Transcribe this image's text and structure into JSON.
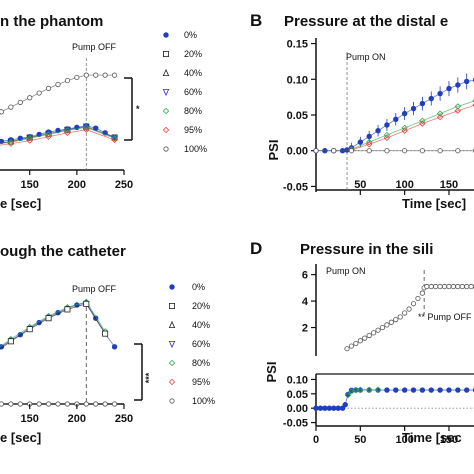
{
  "colors": {
    "c0": "#1f3fbf",
    "c20": "#222222",
    "c40": "#222222",
    "c60": "#3a30c8",
    "c80": "#2fa84a",
    "c95": "#e0403a",
    "c100": "#555555"
  },
  "chart_data": [
    {
      "id": "A",
      "type": "scatter",
      "panel_letter": "",
      "title": "n the phantom",
      "xlabel": "e [sec]",
      "ylabel": "",
      "x_ticks": [
        "150",
        "200",
        "250"
      ],
      "y_ticks": [],
      "annotations": [
        "Pump OFF"
      ],
      "significance": "*",
      "legend": [
        "0%",
        "20%",
        "40%",
        "60%",
        "80%",
        "95%",
        "100%"
      ],
      "xlim": [
        110,
        250
      ],
      "ylim": [
        0,
        1
      ],
      "series": [
        {
          "key": "c100",
          "marker": "circle-open",
          "x": [
            110,
            120,
            130,
            140,
            150,
            160,
            170,
            180,
            190,
            200,
            210,
            220,
            230,
            240
          ],
          "y": [
            0.44,
            0.49,
            0.55,
            0.61,
            0.67,
            0.73,
            0.79,
            0.84,
            0.89,
            0.93,
            0.96,
            0.96,
            0.96,
            0.96
          ]
        },
        {
          "key": "c20",
          "marker": "square-open",
          "x": [
            110,
            130,
            150,
            170,
            190,
            210,
            240
          ],
          "y": [
            0.07,
            0.11,
            0.16,
            0.21,
            0.26,
            0.3,
            0.16
          ]
        },
        {
          "key": "c0",
          "marker": "dot",
          "x": [
            110,
            120,
            130,
            140,
            150,
            160,
            170,
            180,
            190,
            200,
            210,
            220,
            230,
            240
          ],
          "y": [
            0.09,
            0.11,
            0.13,
            0.15,
            0.17,
            0.2,
            0.23,
            0.25,
            0.27,
            0.29,
            0.31,
            0.28,
            0.22,
            0.16
          ]
        },
        {
          "key": "c80",
          "marker": "diamond-open",
          "x": [
            110,
            130,
            150,
            170,
            190,
            210,
            240
          ],
          "y": [
            0.07,
            0.1,
            0.15,
            0.2,
            0.25,
            0.29,
            0.15
          ]
        },
        {
          "key": "c95",
          "marker": "diamond-open",
          "x": [
            110,
            130,
            150,
            170,
            190,
            210,
            240
          ],
          "y": [
            0.05,
            0.08,
            0.12,
            0.17,
            0.22,
            0.26,
            0.13
          ]
        }
      ]
    },
    {
      "id": "B",
      "type": "scatter",
      "panel_letter": "B",
      "title": "Pressure at the distal e",
      "xlabel": "Time [sec]",
      "ylabel": "PSI",
      "x_ticks": [
        "50",
        "100",
        "150"
      ],
      "y_ticks": [
        "0.15",
        "0.10",
        "0.05",
        "0.00",
        "-0.05"
      ],
      "annotations": [
        "Pump ON"
      ],
      "xlim": [
        0,
        185
      ],
      "ylim": [
        -0.055,
        0.155
      ],
      "series": [
        {
          "key": "c0",
          "marker": "dot",
          "x": [
            0,
            10,
            20,
            30,
            35,
            40,
            50,
            60,
            70,
            80,
            90,
            100,
            110,
            120,
            130,
            140,
            150,
            160,
            170,
            180,
            185
          ],
          "y": [
            0,
            0,
            0,
            0,
            0.001,
            0.004,
            0.012,
            0.02,
            0.028,
            0.036,
            0.044,
            0.052,
            0.059,
            0.066,
            0.073,
            0.08,
            0.087,
            0.092,
            0.097,
            0.099,
            0.1
          ]
        },
        {
          "key": "c80",
          "marker": "diamond-open",
          "x": [
            40,
            60,
            80,
            100,
            120,
            140,
            160,
            180
          ],
          "y": [
            0.002,
            0.012,
            0.022,
            0.032,
            0.042,
            0.052,
            0.062,
            0.07
          ]
        },
        {
          "key": "c95",
          "marker": "diamond-open",
          "x": [
            40,
            60,
            80,
            100,
            120,
            140,
            160,
            180
          ],
          "y": [
            0.001,
            0.009,
            0.018,
            0.028,
            0.038,
            0.047,
            0.056,
            0.064
          ]
        },
        {
          "key": "c100",
          "marker": "circle-open",
          "x": [
            0,
            20,
            40,
            60,
            80,
            100,
            120,
            140,
            160,
            180
          ],
          "y": [
            0,
            0,
            0,
            0,
            0,
            0,
            0,
            0,
            0,
            0
          ]
        }
      ]
    },
    {
      "id": "C",
      "type": "scatter",
      "panel_letter": "",
      "title": "ough the catheter",
      "xlabel": "e [sec]",
      "ylabel": "",
      "x_ticks": [
        "150",
        "200",
        "250"
      ],
      "y_ticks": [],
      "annotations": [
        "Pump OFF"
      ],
      "significance": "***",
      "legend": [
        "0%",
        "20%",
        "40%",
        "60%",
        "80%",
        "95%",
        "100%"
      ],
      "xlim": [
        110,
        250
      ],
      "ylim": [
        0,
        1
      ],
      "series": [
        {
          "key": "c0",
          "marker": "dot",
          "x": [
            110,
            120,
            130,
            140,
            150,
            160,
            170,
            180,
            190,
            200,
            210,
            220,
            230,
            240
          ],
          "y": [
            0.46,
            0.52,
            0.58,
            0.63,
            0.69,
            0.74,
            0.79,
            0.83,
            0.87,
            0.9,
            0.92,
            0.78,
            0.64,
            0.52
          ]
        },
        {
          "key": "c80",
          "marker": "diamond-open",
          "x": [
            110,
            130,
            150,
            170,
            190,
            210,
            230
          ],
          "y": [
            0.47,
            0.59,
            0.7,
            0.8,
            0.88,
            0.93,
            0.66
          ]
        },
        {
          "key": "c20",
          "marker": "square-open",
          "x": [
            110,
            130,
            150,
            170,
            190,
            210,
            230
          ],
          "y": [
            0.45,
            0.57,
            0.68,
            0.78,
            0.86,
            0.91,
            0.64
          ]
        },
        {
          "key": "c100",
          "marker": "circle-open",
          "x": [
            110,
            120,
            130,
            140,
            150,
            160,
            170,
            180,
            190,
            200,
            210,
            220,
            230,
            240
          ],
          "y": [
            0,
            0,
            0,
            0,
            0,
            0,
            0,
            0,
            0,
            0,
            0,
            0,
            0,
            0
          ]
        }
      ]
    },
    {
      "id": "D",
      "type": "scatter",
      "panel_letter": "D",
      "title": "Pressure in the sili",
      "xlabel": "Time [sec",
      "ylabel": "PSI",
      "x_ticks": [
        "0",
        "50",
        "100",
        "150"
      ],
      "y_ticks_upper": [
        "6",
        "4",
        "2"
      ],
      "y_ticks_lower": [
        "0.10",
        "0.05",
        "0.00",
        "-0.05"
      ],
      "annotations": [
        "Pump ON",
        "** Pump OFF"
      ],
      "xlim": [
        0,
        185
      ],
      "ylim_upper": [
        0,
        6.5
      ],
      "ylim_lower": [
        -0.055,
        0.105
      ],
      "series_upper": [
        {
          "key": "c100",
          "marker": "circle-open",
          "x": [
            35,
            40,
            45,
            50,
            55,
            60,
            65,
            70,
            75,
            80,
            85,
            90,
            95,
            100,
            105,
            110,
            115,
            120,
            122,
            125,
            130,
            135,
            140,
            145,
            150,
            155,
            160,
            165,
            170,
            175,
            180,
            185
          ],
          "y": [
            0.4,
            0.6,
            0.8,
            1.0,
            1.2,
            1.4,
            1.6,
            1.8,
            2.0,
            2.2,
            2.4,
            2.6,
            2.8,
            3.1,
            3.4,
            3.8,
            4.2,
            4.6,
            5.0,
            5.1,
            5.1,
            5.1,
            5.1,
            5.1,
            5.1,
            5.1,
            5.1,
            5.1,
            5.1,
            5.1,
            5.1,
            5.1
          ]
        }
      ],
      "series_lower": [
        {
          "key": "c0",
          "marker": "dot",
          "x": [
            0,
            5,
            10,
            15,
            20,
            25,
            30,
            33,
            36,
            40,
            45,
            50,
            60,
            70,
            80,
            90,
            100,
            110,
            120,
            130,
            140,
            150,
            160,
            170,
            180,
            185
          ],
          "y": [
            0,
            0,
            0,
            0,
            0,
            0,
            0,
            0.012,
            0.048,
            0.062,
            0.063,
            0.063,
            0.063,
            0.063,
            0.063,
            0.063,
            0.063,
            0.063,
            0.063,
            0.063,
            0.063,
            0.063,
            0.063,
            0.063,
            0.063,
            0.063
          ]
        },
        {
          "key": "c80",
          "marker": "diamond-open",
          "x": [
            36,
            40,
            45,
            50,
            60,
            70
          ],
          "y": [
            0.045,
            0.058,
            0.063,
            0.064,
            0.064,
            0.064
          ]
        }
      ]
    }
  ]
}
